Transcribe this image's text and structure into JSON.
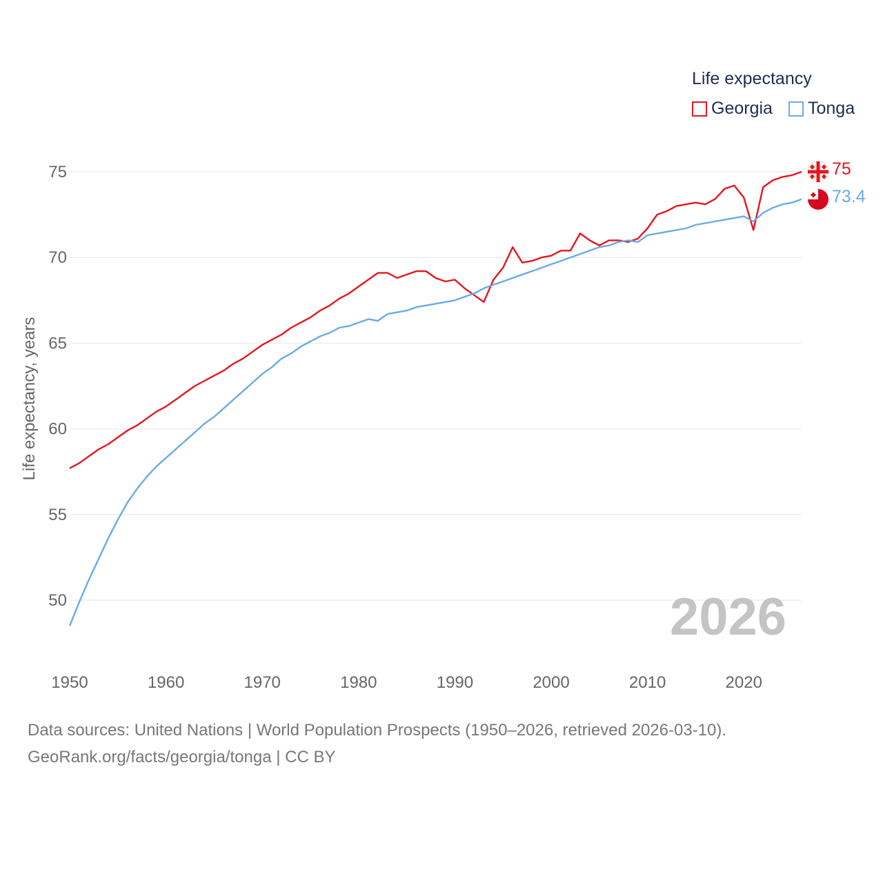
{
  "legend": {
    "title": "Life expectancy",
    "items": [
      {
        "name": "Georgia",
        "color": "#e8141c"
      },
      {
        "name": "Tonga",
        "color": "#6aaae4"
      }
    ]
  },
  "footer": {
    "line1": "Data sources: United Nations | World Population Prospects (1950–2026, retrieved 2026-03-10).",
    "line2": "GeoRank.org/facts/georgia/tonga | CC BY"
  },
  "chart_data": {
    "type": "line",
    "title": "Life expectancy",
    "xlabel": "",
    "ylabel": "Life expectancy, years",
    "year_watermark": "2026",
    "xlim": [
      1950,
      2026
    ],
    "ylim": [
      47,
      77
    ],
    "x_ticks": [
      1950,
      1960,
      1970,
      1980,
      1990,
      2000,
      2010,
      2020
    ],
    "y_ticks": [
      50,
      55,
      60,
      65,
      70,
      75
    ],
    "grid": true,
    "legend_position": "top-right",
    "x": [
      1950,
      1951,
      1952,
      1953,
      1954,
      1955,
      1956,
      1957,
      1958,
      1959,
      1960,
      1961,
      1962,
      1963,
      1964,
      1965,
      1966,
      1967,
      1968,
      1969,
      1970,
      1971,
      1972,
      1973,
      1974,
      1975,
      1976,
      1977,
      1978,
      1979,
      1980,
      1981,
      1982,
      1983,
      1984,
      1985,
      1986,
      1987,
      1988,
      1989,
      1990,
      1991,
      1992,
      1993,
      1994,
      1995,
      1996,
      1997,
      1998,
      1999,
      2000,
      2001,
      2002,
      2003,
      2004,
      2005,
      2006,
      2007,
      2008,
      2009,
      2010,
      2011,
      2012,
      2013,
      2014,
      2015,
      2016,
      2017,
      2018,
      2019,
      2020,
      2021,
      2022,
      2023,
      2024,
      2025,
      2026
    ],
    "series": [
      {
        "name": "Georgia",
        "color": "#e8141c",
        "end_label": "75",
        "values": [
          57.7,
          58.0,
          58.4,
          58.8,
          59.1,
          59.5,
          59.9,
          60.2,
          60.6,
          61.0,
          61.3,
          61.7,
          62.1,
          62.5,
          62.8,
          63.1,
          63.4,
          63.8,
          64.1,
          64.5,
          64.9,
          65.2,
          65.5,
          65.9,
          66.2,
          66.5,
          66.9,
          67.2,
          67.6,
          67.9,
          68.3,
          68.7,
          69.1,
          69.1,
          68.8,
          69.0,
          69.2,
          69.2,
          68.8,
          68.6,
          68.7,
          68.2,
          67.8,
          67.4,
          68.7,
          69.4,
          70.6,
          69.7,
          69.8,
          70.0,
          70.1,
          70.4,
          70.4,
          71.4,
          71.0,
          70.7,
          71.0,
          71.0,
          70.9,
          71.1,
          71.7,
          72.5,
          72.7,
          73.0,
          73.1,
          73.2,
          73.1,
          73.4,
          74.0,
          74.2,
          73.5,
          71.6,
          74.1,
          74.5,
          74.7,
          74.8,
          75.0
        ]
      },
      {
        "name": "Tonga",
        "color": "#6aaae4",
        "end_label": "73.4",
        "values": [
          48.5,
          49.9,
          51.2,
          52.4,
          53.6,
          54.7,
          55.7,
          56.5,
          57.2,
          57.8,
          58.3,
          58.8,
          59.3,
          59.8,
          60.3,
          60.7,
          61.2,
          61.7,
          62.2,
          62.7,
          63.2,
          63.6,
          64.1,
          64.4,
          64.8,
          65.1,
          65.4,
          65.6,
          65.9,
          66.0,
          66.2,
          66.4,
          66.3,
          66.7,
          66.8,
          66.9,
          67.1,
          67.2,
          67.3,
          67.4,
          67.5,
          67.7,
          67.9,
          68.2,
          68.4,
          68.6,
          68.8,
          69.0,
          69.2,
          69.4,
          69.6,
          69.8,
          70.0,
          70.2,
          70.4,
          70.6,
          70.7,
          70.9,
          71.0,
          70.9,
          71.3,
          71.4,
          71.5,
          71.6,
          71.7,
          71.9,
          72.0,
          72.1,
          72.2,
          72.3,
          72.4,
          72.1,
          72.6,
          72.9,
          73.1,
          73.2,
          73.4
        ]
      }
    ]
  }
}
